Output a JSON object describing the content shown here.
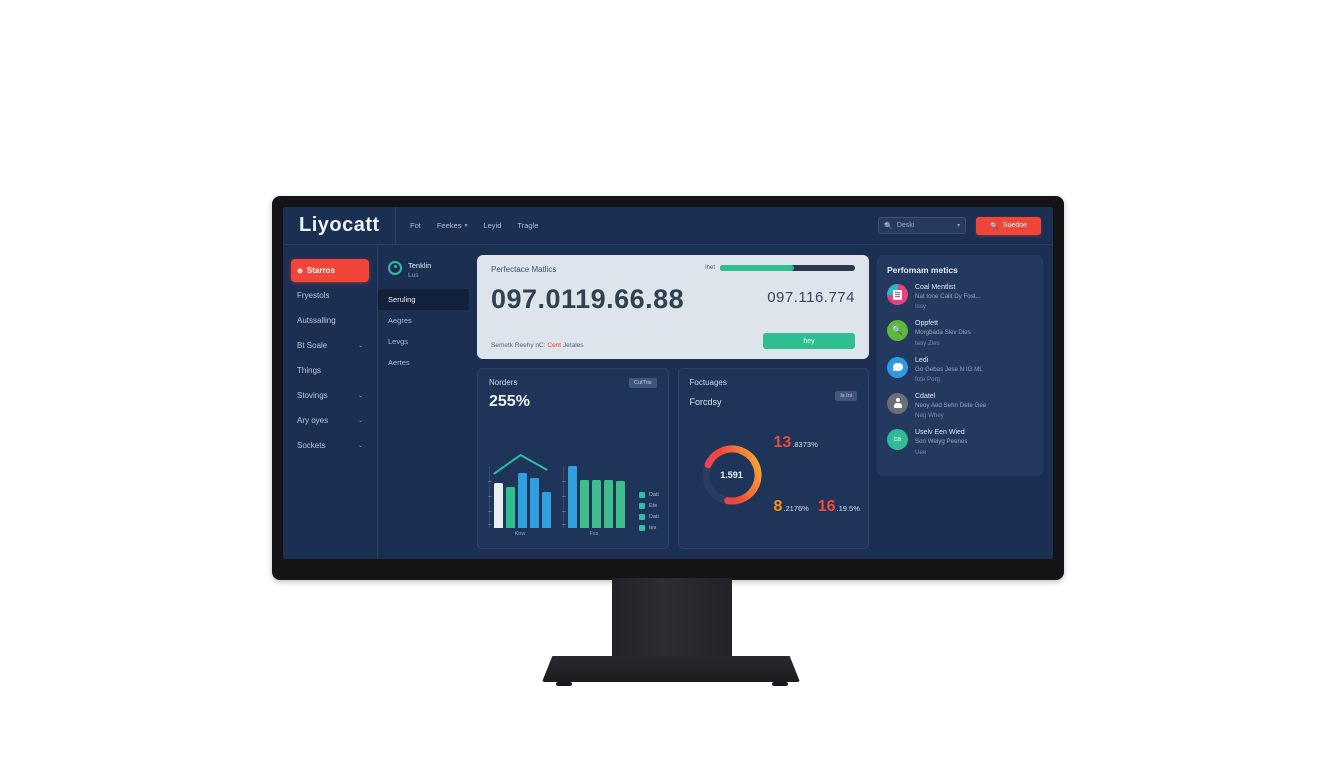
{
  "logo": "Liyocatt",
  "top_nav": {
    "items": [
      {
        "label": "Fot",
        "chevron": false
      },
      {
        "label": "Feekes",
        "chevron": true
      },
      {
        "label": "Leyid",
        "chevron": false
      },
      {
        "label": "Tragle",
        "chevron": false
      }
    ]
  },
  "search": {
    "value": "Deski",
    "icon": "search-icon"
  },
  "cta": {
    "label": "Suedoe",
    "icon": "search-icon"
  },
  "sidebar": {
    "items": [
      {
        "label": "Starros",
        "active": true,
        "chevron": false
      },
      {
        "label": "Fryestols",
        "active": false,
        "chevron": false
      },
      {
        "label": "Autssalling",
        "active": false,
        "chevron": false
      },
      {
        "label": "Bt Soale",
        "active": false,
        "chevron": true
      },
      {
        "label": "Things",
        "active": false,
        "chevron": false
      },
      {
        "label": "Stovings",
        "active": false,
        "chevron": true
      },
      {
        "label": "Ary oyes",
        "active": false,
        "chevron": true
      },
      {
        "label": "Sockets",
        "active": false,
        "chevron": true
      }
    ]
  },
  "subsidebar": {
    "header": {
      "title": "Tenklin",
      "subtitle": "Lus",
      "icon": "gauge-icon"
    },
    "items": [
      {
        "label": "Seruling",
        "active": true
      },
      {
        "label": "Aegres",
        "active": false
      },
      {
        "label": "Levgs",
        "active": false
      },
      {
        "label": "Aertes",
        "active": false
      }
    ]
  },
  "metrics_card": {
    "title": "Perfectace Matlics",
    "big_value": "097.0119.66.88",
    "progress_label": "Ihet",
    "progress_percent": 55,
    "secondary_value": "097.116.774",
    "footnote_prefix": "Semetk Reehy nC:",
    "footnote_highlight": "Cent",
    "footnote_suffix": "Jetales",
    "button_label": "hey"
  },
  "chart_data": [
    {
      "type": "bar",
      "title": "Norders",
      "big_value": "255%",
      "badge": "CutTris",
      "groups": [
        {
          "label": "Kow",
          "values": [
            72,
            66,
            88,
            80,
            58
          ],
          "colors": [
            "#e8edf2",
            "#2fbf8f",
            "#2f9fe0",
            "#2f9fe0",
            "#2f9fe0"
          ],
          "trend_line": [
            22,
            3,
            18
          ]
        },
        {
          "label": "Fss",
          "values": [
            100,
            78,
            78,
            78,
            76
          ],
          "colors": [
            "#2f9fe0",
            "#3dbd8a",
            "#3dbd8a",
            "#3dbd8a",
            "#3dbd8a"
          ],
          "trend_line": null
        }
      ],
      "legend": [
        "Dati",
        "Ete",
        "Dati",
        "tes"
      ],
      "legend_color": "#2fbfa0"
    },
    {
      "type": "donut",
      "title": "Foctuages",
      "subtitle": "Forcdsy",
      "badge": "Is Ini",
      "center_value": "1.591",
      "ring_percent": 71,
      "ring_colors": [
        "#f7b733",
        "#f2453a",
        "#e23e7a"
      ],
      "track_color": "#2c3c60",
      "stats": [
        {
          "value": "13",
          "suffix": ".8373%",
          "color": "#ef4b3c"
        },
        {
          "value": "8",
          "suffix": ".2176%",
          "color": "#f5921e"
        },
        {
          "value": "16",
          "suffix": ".19.5%",
          "color": "#ef4b3c"
        }
      ]
    }
  ],
  "activity_panel": {
    "title": "Perfomam metics",
    "items": [
      {
        "title": "Coal Mentlist",
        "line1": "Nat tone Calit Dy Fost...",
        "line2": "Issy",
        "icon": "document-icon",
        "color": "#e8417d"
      },
      {
        "title": "Oppfett",
        "line1": "Morgbada Slev Dies",
        "line2": "tesy Zies",
        "icon": "search-icon",
        "color": "#5cb838"
      },
      {
        "title": "Ledi",
        "line1": "Go Gebas Jese N IG ML",
        "line2": "fote Porg",
        "icon": "bird-icon",
        "color": "#2e9ae4"
      },
      {
        "title": "Cdatel",
        "line1": "Neoy Aed Sehn Dete Gee",
        "line2": "Neg Whey",
        "icon": "person-icon",
        "color": "#6b6f78"
      },
      {
        "title": "Uselv Een Wied",
        "line1": "Son Welyg Peenes",
        "line2": "Uee",
        "icon": "badge-icon",
        "color": "#2eb4a4"
      }
    ]
  },
  "colors": {
    "accent_red": "#f2453a",
    "accent_green": "#2fbf8f",
    "screen_bg": "#1b2f53",
    "panel_bg": "#24395f",
    "light_card_bg": "#dde4ec"
  }
}
